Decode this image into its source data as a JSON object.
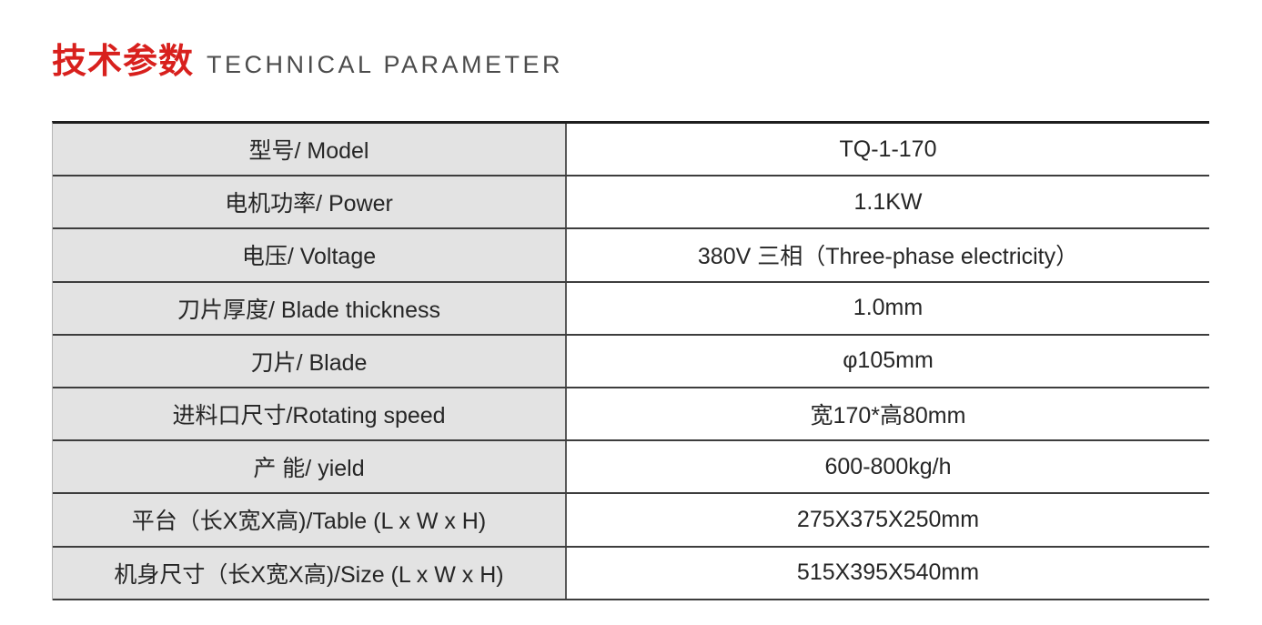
{
  "header": {
    "title_cn": "技术参数",
    "title_en": "TECHNICAL PARAMETER"
  },
  "colors": {
    "accent_red": "#d8201d",
    "title_en_gray": "#4c4c4c",
    "label_cell_bg": "#e3e3e3",
    "border_dark": "#1e1e1e",
    "cell_text": "#262626"
  },
  "table": {
    "rows": [
      {
        "label": "型号/ Model",
        "value": "TQ-1-170"
      },
      {
        "label": "电机功率/ Power",
        "value": "1.1KW"
      },
      {
        "label": "电压/ Voltage",
        "value": "380V 三相（Three-phase electricity）"
      },
      {
        "label": "刀片厚度/ Blade thickness",
        "value": "1.0mm"
      },
      {
        "label": "刀片/ Blade",
        "value": "φ105mm"
      },
      {
        "label": "进料口尺寸/Rotating speed",
        "value": "宽170*高80mm"
      },
      {
        "label": "产 能/ yield",
        "value": "600-800kg/h"
      },
      {
        "label": "平台（长X宽X高)/Table (L x W x H)",
        "value": "275X375X250mm"
      },
      {
        "label": "机身尺寸（长X宽X高)/Size (L x W x H)",
        "value": "515X395X540mm"
      }
    ]
  }
}
